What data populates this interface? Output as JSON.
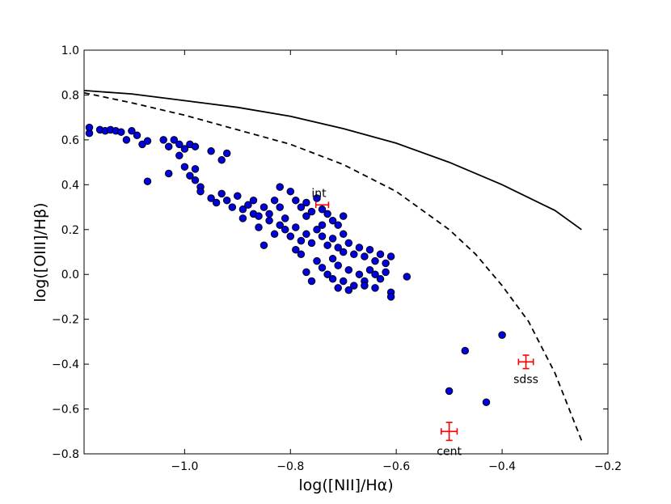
{
  "chart_data": {
    "type": "scatter",
    "xlabel": "log([NII]/Hα)",
    "ylabel": "log([OIII]/Hβ)",
    "xlim": [
      -1.19,
      -0.2
    ],
    "ylim": [
      -0.8,
      1.0
    ],
    "xticks": [
      -1.0,
      -0.8,
      -0.6,
      -0.4,
      -0.2
    ],
    "xtick_labels": [
      "−1.0",
      "−0.8",
      "−0.6",
      "−0.4",
      "−0.2"
    ],
    "yticks": [
      -0.8,
      -0.6,
      -0.4,
      -0.2,
      0.0,
      0.2,
      0.4,
      0.6,
      0.8,
      1.0
    ],
    "ytick_labels": [
      "−0.8",
      "−0.6",
      "−0.4",
      "−0.2",
      "0.0",
      "0.2",
      "0.4",
      "0.6",
      "0.8",
      "1.0"
    ],
    "grid": false,
    "lines": [
      {
        "style": "solid",
        "color": "#000000",
        "points": [
          [
            -1.19,
            0.82
          ],
          [
            -1.1,
            0.805
          ],
          [
            -1.0,
            0.775
          ],
          [
            -0.9,
            0.745
          ],
          [
            -0.8,
            0.705
          ],
          [
            -0.7,
            0.65
          ],
          [
            -0.6,
            0.585
          ],
          [
            -0.5,
            0.5
          ],
          [
            -0.4,
            0.4
          ],
          [
            -0.3,
            0.285
          ],
          [
            -0.25,
            0.2
          ]
        ]
      },
      {
        "style": "dashed",
        "color": "#000000",
        "points": [
          [
            -1.19,
            0.81
          ],
          [
            -1.1,
            0.765
          ],
          [
            -1.0,
            0.71
          ],
          [
            -0.9,
            0.645
          ],
          [
            -0.8,
            0.58
          ],
          [
            -0.7,
            0.49
          ],
          [
            -0.6,
            0.37
          ],
          [
            -0.5,
            0.2
          ],
          [
            -0.45,
            0.09
          ],
          [
            -0.4,
            -0.05
          ],
          [
            -0.35,
            -0.21
          ],
          [
            -0.3,
            -0.44
          ],
          [
            -0.25,
            -0.74
          ]
        ]
      }
    ],
    "marker_color": "#0000dd",
    "points": [
      [
        -1.18,
        0.63
      ],
      [
        -1.18,
        0.655
      ],
      [
        -1.16,
        0.645
      ],
      [
        -1.15,
        0.64
      ],
      [
        -1.14,
        0.645
      ],
      [
        -1.13,
        0.64
      ],
      [
        -1.12,
        0.635
      ],
      [
        -1.11,
        0.6
      ],
      [
        -1.1,
        0.64
      ],
      [
        -1.09,
        0.62
      ],
      [
        -1.08,
        0.58
      ],
      [
        -1.07,
        0.595
      ],
      [
        -1.07,
        0.415
      ],
      [
        -1.04,
        0.6
      ],
      [
        -1.03,
        0.57
      ],
      [
        -1.02,
        0.6
      ],
      [
        -1.01,
        0.58
      ],
      [
        -1.01,
        0.53
      ],
      [
        -1.0,
        0.56
      ],
      [
        -0.99,
        0.58
      ],
      [
        -0.98,
        0.57
      ],
      [
        -0.99,
        0.44
      ],
      [
        -0.98,
        0.47
      ],
      [
        -1.03,
        0.45
      ],
      [
        -1.0,
        0.48
      ],
      [
        -0.98,
        0.42
      ],
      [
        -0.97,
        0.39
      ],
      [
        -0.97,
        0.37
      ],
      [
        -0.95,
        0.55
      ],
      [
        -0.93,
        0.51
      ],
      [
        -0.92,
        0.54
      ],
      [
        -0.95,
        0.34
      ],
      [
        -0.94,
        0.32
      ],
      [
        -0.93,
        0.36
      ],
      [
        -0.92,
        0.33
      ],
      [
        -0.91,
        0.3
      ],
      [
        -0.9,
        0.35
      ],
      [
        -0.89,
        0.29
      ],
      [
        -0.88,
        0.31
      ],
      [
        -0.87,
        0.27
      ],
      [
        -0.87,
        0.33
      ],
      [
        -0.86,
        0.26
      ],
      [
        -0.85,
        0.3
      ],
      [
        -0.85,
        0.13
      ],
      [
        -0.84,
        0.27
      ],
      [
        -0.83,
        0.33
      ],
      [
        -0.82,
        0.3
      ],
      [
        -0.81,
        0.25
      ],
      [
        -0.82,
        0.39
      ],
      [
        -0.8,
        0.37
      ],
      [
        -0.79,
        0.33
      ],
      [
        -0.78,
        0.3
      ],
      [
        -0.77,
        0.32
      ],
      [
        -0.77,
        0.26
      ],
      [
        -0.76,
        0.28
      ],
      [
        -0.75,
        0.34
      ],
      [
        -0.74,
        0.29
      ],
      [
        -0.73,
        0.27
      ],
      [
        -0.72,
        0.24
      ],
      [
        -0.71,
        0.22
      ],
      [
        -0.7,
        0.26
      ],
      [
        -0.82,
        0.22
      ],
      [
        -0.81,
        0.2
      ],
      [
        -0.8,
        0.17
      ],
      [
        -0.79,
        0.21
      ],
      [
        -0.78,
        0.15
      ],
      [
        -0.77,
        0.18
      ],
      [
        -0.76,
        0.14
      ],
      [
        -0.75,
        0.2
      ],
      [
        -0.74,
        0.17
      ],
      [
        -0.73,
        0.13
      ],
      [
        -0.72,
        0.16
      ],
      [
        -0.71,
        0.12
      ],
      [
        -0.7,
        0.1
      ],
      [
        -0.69,
        0.14
      ],
      [
        -0.68,
        0.09
      ],
      [
        -0.67,
        0.12
      ],
      [
        -0.66,
        0.08
      ],
      [
        -0.65,
        0.11
      ],
      [
        -0.64,
        0.06
      ],
      [
        -0.63,
        0.09
      ],
      [
        -0.62,
        0.05
      ],
      [
        -0.61,
        0.08
      ],
      [
        -0.75,
        0.06
      ],
      [
        -0.74,
        0.03
      ],
      [
        -0.73,
        0.0
      ],
      [
        -0.72,
        -0.02
      ],
      [
        -0.71,
        0.04
      ],
      [
        -0.7,
        -0.03
      ],
      [
        -0.69,
        0.02
      ],
      [
        -0.68,
        -0.05
      ],
      [
        -0.67,
        0.0
      ],
      [
        -0.66,
        -0.03
      ],
      [
        -0.65,
        0.02
      ],
      [
        -0.64,
        -0.06
      ],
      [
        -0.63,
        -0.02
      ],
      [
        -0.62,
        0.01
      ],
      [
        -0.61,
        -0.08
      ],
      [
        -0.61,
        -0.1
      ],
      [
        -0.58,
        -0.01
      ],
      [
        -0.77,
        0.01
      ],
      [
        -0.78,
        0.09
      ],
      [
        -0.76,
        -0.03
      ],
      [
        -0.71,
        -0.06
      ],
      [
        -0.69,
        -0.07
      ],
      [
        -0.66,
        -0.05
      ],
      [
        -0.64,
        0.0
      ],
      [
        -0.86,
        0.21
      ],
      [
        -0.84,
        0.24
      ],
      [
        -0.89,
        0.25
      ],
      [
        -0.83,
        0.18
      ],
      [
        -0.79,
        0.11
      ],
      [
        -0.74,
        0.22
      ],
      [
        -0.72,
        0.07
      ],
      [
        -0.7,
        0.18
      ],
      [
        -0.5,
        -0.52
      ],
      [
        -0.47,
        -0.34
      ],
      [
        -0.43,
        -0.57
      ],
      [
        -0.4,
        -0.27
      ]
    ],
    "error_points": [
      {
        "label": "int",
        "x": -0.74,
        "y": 0.31,
        "xerr": 0.012,
        "yerr": 0.0
      },
      {
        "label": "sdss",
        "x": -0.355,
        "y": -0.39,
        "xerr": 0.014,
        "yerr": 0.03
      },
      {
        "label": "cent",
        "x": -0.5,
        "y": -0.7,
        "xerr": 0.015,
        "yerr": 0.04
      }
    ],
    "error_color": "#ff0000"
  }
}
